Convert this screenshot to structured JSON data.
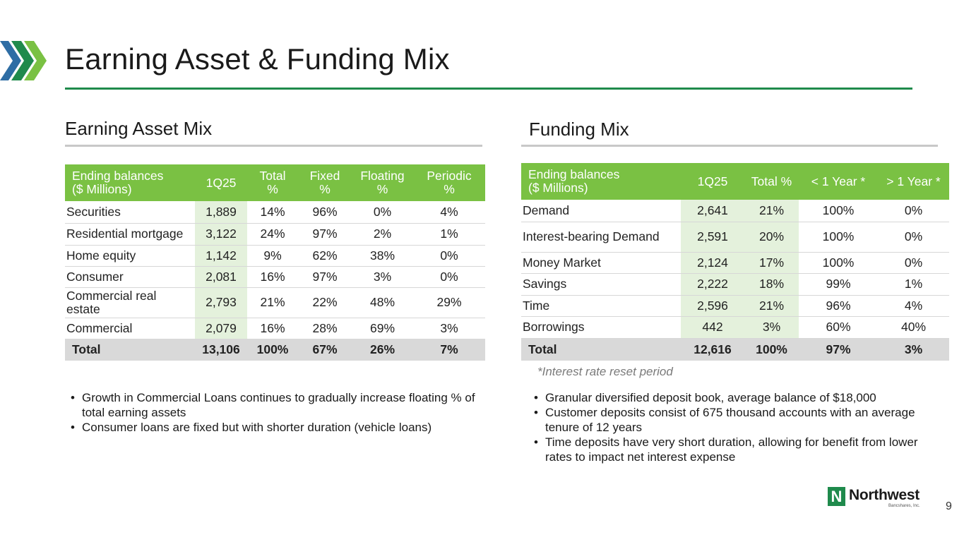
{
  "page": {
    "title": "Earning Asset & Funding Mix",
    "page_number": "9"
  },
  "colors": {
    "accent_green": "#1f8a4c",
    "header_green": "#7ac143",
    "highlight_green": "#e4f1dc",
    "chevron_blue": "#2e6da4",
    "total_gray": "#d9d9d9"
  },
  "left": {
    "heading": "Earning Asset Mix",
    "table": {
      "headers": [
        [
          "Ending balances",
          "($ Millions)"
        ],
        [
          "1Q25"
        ],
        [
          "Total",
          "%"
        ],
        [
          "Fixed",
          "%"
        ],
        [
          "Floating",
          "%"
        ],
        [
          "Periodic",
          "%"
        ]
      ],
      "rows": [
        [
          "Securities",
          "1,889",
          "14%",
          "96%",
          "0%",
          "4%"
        ],
        [
          "Residential mortgage",
          "3,122",
          "24%",
          "97%",
          "2%",
          "1%"
        ],
        [
          "Home equity",
          "1,142",
          "9%",
          "62%",
          "38%",
          "0%"
        ],
        [
          "Consumer",
          "2,081",
          "16%",
          "97%",
          "3%",
          "0%"
        ],
        [
          "Commercial real estate",
          "2,793",
          "21%",
          "22%",
          "48%",
          "29%"
        ],
        [
          "Commercial",
          "2,079",
          "16%",
          "28%",
          "69%",
          "3%"
        ]
      ],
      "total": [
        "Total",
        "13,106",
        "100%",
        "67%",
        "26%",
        "7%"
      ]
    },
    "bullets": [
      "Growth in Commercial Loans continues to gradually increase floating % of total earning assets",
      "Consumer loans are fixed but with shorter duration (vehicle loans)"
    ]
  },
  "right": {
    "heading": "Funding Mix",
    "table": {
      "headers": [
        [
          "Ending balances",
          "($ Millions)"
        ],
        [
          "1Q25"
        ],
        [
          "Total %"
        ],
        [
          "< 1 Year *"
        ],
        [
          "> 1 Year *"
        ]
      ],
      "rows": [
        [
          "Demand",
          "2,641",
          "21%",
          "100%",
          "0%"
        ],
        [
          "Interest-bearing Demand",
          "2,591",
          "20%",
          "100%",
          "0%"
        ],
        [
          "Money Market",
          "2,124",
          "17%",
          "100%",
          "0%"
        ],
        [
          "Savings",
          "2,222",
          "18%",
          "99%",
          "1%"
        ],
        [
          "Time",
          "2,596",
          "21%",
          "96%",
          "4%"
        ],
        [
          "Borrowings",
          "442",
          "3%",
          "60%",
          "40%"
        ]
      ],
      "total": [
        "Total",
        "12,616",
        "100%",
        "97%",
        "3%"
      ]
    },
    "note": "*Interest rate reset period",
    "bullets": [
      "Granular diversified deposit book, average balance of $18,000",
      "Customer deposits consist of 675 thousand accounts with an average tenure of 12 years",
      "Time deposits have very short duration, allowing for benefit from lower rates to impact net interest expense"
    ]
  },
  "logo": {
    "mark": "N",
    "name": "Northwest",
    "sub": "Bancshares, Inc."
  },
  "icons": [
    "chevron-arrows-icon",
    "northwest-logo-icon"
  ]
}
